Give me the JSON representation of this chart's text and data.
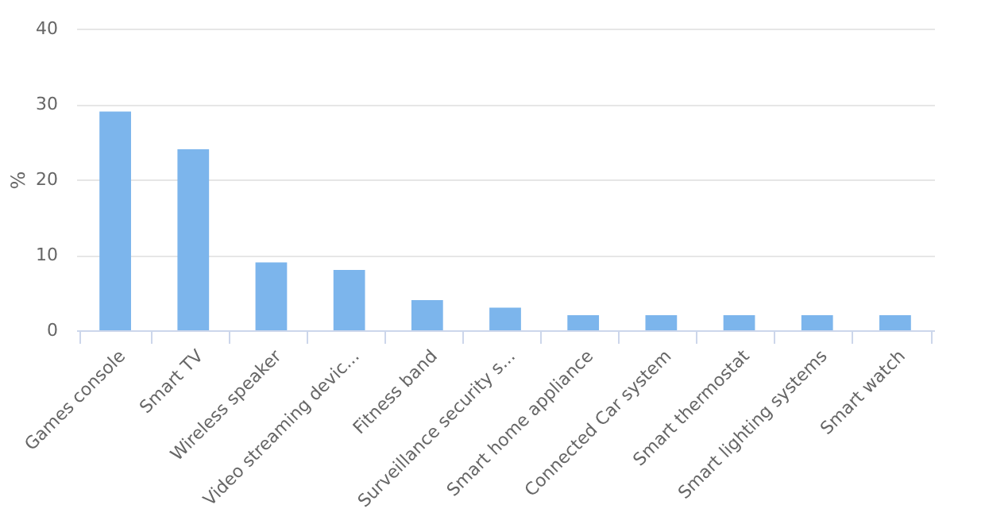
{
  "chart_data": {
    "type": "bar",
    "ylabel": "%",
    "categories": [
      "Games console",
      "Smart TV",
      "Wireless speaker",
      "Video streaming devic...",
      "Fitness band",
      "Surveillance security s...",
      "Smart home appliance",
      "Connected Car system",
      "Smart thermostat",
      "Smart lighting systems",
      "Smart watch"
    ],
    "values": [
      29,
      24,
      9,
      8,
      4,
      3,
      2,
      2,
      2,
      2,
      2
    ],
    "color": "#7cb5ec",
    "ylim": [
      0,
      40
    ],
    "yticks": [
      0,
      10,
      20,
      30,
      40
    ],
    "grid": "y"
  }
}
